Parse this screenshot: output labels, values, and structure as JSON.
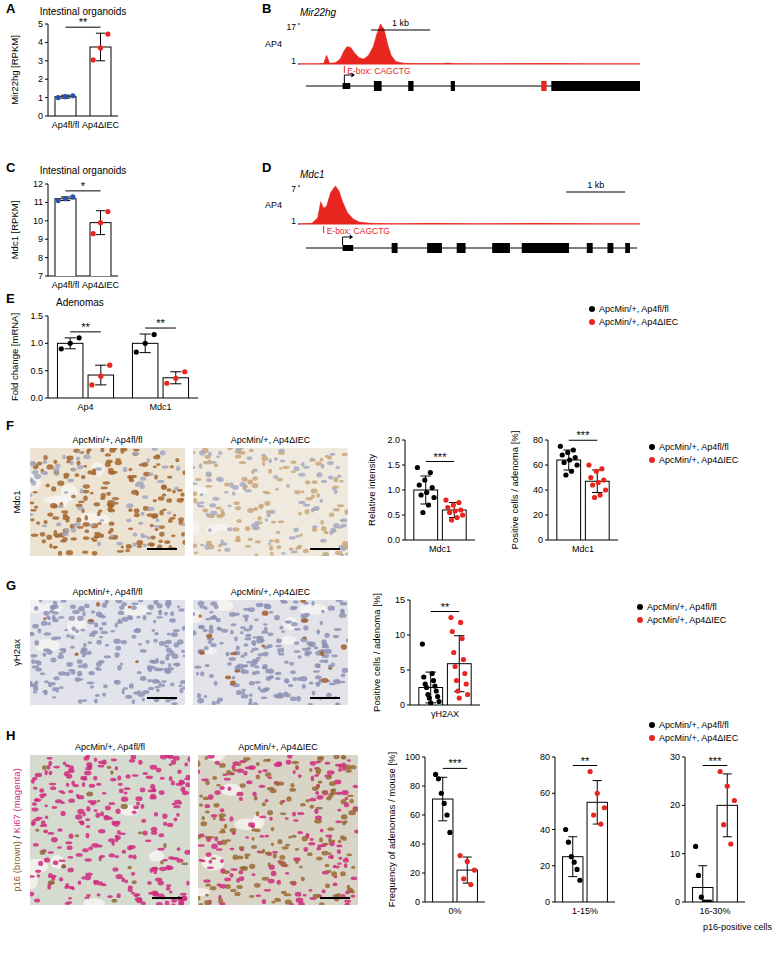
{
  "panel_labels": [
    "A",
    "B",
    "C",
    "D",
    "E",
    "F",
    "G",
    "H"
  ],
  "chart_data": [
    {
      "type": "bar",
      "title": "Intestinal organoids",
      "y_label": "Mir22hg [RPKM]",
      "categories": [
        "Ap4fl/fl",
        "Ap4ΔIEC"
      ],
      "values": [
        1.05,
        3.75
      ],
      "errors": [
        0.08,
        0.75
      ],
      "points": [
        [
          1.0,
          1.05,
          1.1
        ],
        [
          3.05,
          3.7,
          4.45
        ]
      ],
      "colors": [
        "#2a52a5",
        "#e8251f"
      ],
      "ylim": [
        0,
        5
      ],
      "yticks": [
        0,
        1,
        2,
        3,
        4,
        5
      ],
      "significance": [
        "**"
      ]
    },
    {
      "type": "area",
      "title": "Mir22hg",
      "series": [
        {
          "name": "AP4",
          "color": "#e8251f",
          "x": [
            0,
            0.3,
            0.4,
            0.45,
            0.5,
            0.6,
            0.68,
            0.75,
            0.8,
            0.86,
            0.92,
            1.0,
            1.08,
            1.16,
            1.24,
            1.3,
            1.36,
            1.42,
            1.48,
            1.54,
            1.62,
            1.75,
            2.0,
            2.4,
            2.5,
            2.6,
            3.0,
            3.6,
            4.2,
            4.8,
            5.75
          ],
          "values": [
            1,
            1,
            1.2,
            4.5,
            1.3,
            1.5,
            3,
            6.5,
            8,
            7.5,
            5.5,
            3.5,
            3,
            4.5,
            8,
            13,
            17,
            15,
            9,
            4.5,
            2,
            1.3,
            1.1,
            1.1,
            1.4,
            1.1,
            1,
            1.1,
            1.2,
            1,
            1
          ]
        }
      ],
      "xlim": [
        0,
        5.75
      ],
      "ylim": [
        1,
        17
      ],
      "yticks": [
        1,
        17
      ],
      "scale_bar": {
        "value": 1,
        "label": "1 kb"
      },
      "gene_model": {
        "span": [
          0.1,
          5.75
        ],
        "tss": 0.75,
        "exons": [
          {
            "start": 0.72,
            "end": 0.85,
            "kind": "utr"
          },
          {
            "start": 1.25,
            "end": 1.38,
            "kind": "cds"
          },
          {
            "start": 1.83,
            "end": 1.92,
            "kind": "cds"
          },
          {
            "start": 2.55,
            "end": 2.62,
            "kind": "cds"
          },
          {
            "start": 4.08,
            "end": 4.17,
            "kind": "mirna"
          },
          {
            "start": 4.25,
            "end": 5.75,
            "kind": "cds"
          }
        ]
      },
      "annotations": [
        {
          "x": 0.75,
          "text": "E-box: CAGCTG"
        }
      ]
    },
    {
      "type": "bar",
      "title": "Intestinal organoids",
      "y_label": "Mdc1 [RPKM]",
      "categories": [
        "Ap4fl/fl",
        "Ap4ΔIEC"
      ],
      "values": [
        11.2,
        9.9
      ],
      "errors": [
        0.1,
        0.65
      ],
      "points": [
        [
          11.1,
          11.2,
          11.3
        ],
        [
          9.3,
          9.9,
          10.5
        ]
      ],
      "colors": [
        "#2a52a5",
        "#e8251f"
      ],
      "ylim": [
        7,
        12
      ],
      "yticks": [
        7,
        8,
        9,
        10,
        11,
        12
      ],
      "significance": [
        "*"
      ]
    },
    {
      "type": "area",
      "title": "Mdc1",
      "series": [
        {
          "name": "AP4",
          "color": "#e8251f",
          "x": [
            0,
            0.2,
            0.3,
            0.35,
            0.4,
            0.45,
            0.52,
            0.6,
            0.66,
            0.72,
            0.8,
            0.9,
            1.0,
            1.2,
            1.6,
            2.2,
            3,
            4,
            5,
            5.75
          ],
          "values": [
            1,
            1.1,
            2,
            4.5,
            3.5,
            3.8,
            6,
            7,
            6.2,
            4.5,
            2.8,
            1.8,
            1.3,
            1.1,
            1,
            1.1,
            1,
            1.1,
            1,
            1
          ]
        }
      ],
      "xlim": [
        0,
        5.75
      ],
      "ylim": [
        1,
        7
      ],
      "yticks": [
        1,
        7
      ],
      "scale_bar": {
        "value": 1,
        "label": "1 kb"
      },
      "gene_model": {
        "span": [
          0.1,
          5.7
        ],
        "tss": 0.72,
        "exons": [
          {
            "start": 0.72,
            "end": 0.9,
            "kind": "utr"
          },
          {
            "start": 1.55,
            "end": 1.65,
            "kind": "cds"
          },
          {
            "start": 2.15,
            "end": 2.4,
            "kind": "cds"
          },
          {
            "start": 2.65,
            "end": 2.8,
            "kind": "cds"
          },
          {
            "start": 3.25,
            "end": 3.55,
            "kind": "cds"
          },
          {
            "start": 3.75,
            "end": 4.55,
            "kind": "cds"
          },
          {
            "start": 4.85,
            "end": 4.95,
            "kind": "cds"
          },
          {
            "start": 5.2,
            "end": 5.3,
            "kind": "cds"
          },
          {
            "start": 5.5,
            "end": 5.58,
            "kind": "cds"
          }
        ]
      },
      "annotations": [
        {
          "x": 0.4,
          "text": "E-box: CAGCTG"
        }
      ]
    },
    {
      "type": "bar",
      "title": "Adenomas",
      "y_label": "Fold change [mRNA]",
      "categories": [
        "Ap4",
        "Mdc1"
      ],
      "series": [
        {
          "name": "ApcMin/+, Ap4fl/fl",
          "color": "#000000",
          "values": [
            1.0,
            1.0
          ],
          "errors": [
            0.1,
            0.17
          ],
          "points": [
            [
              0.9,
              1.0,
              1.1
            ],
            [
              0.84,
              1.0,
              1.16
            ]
          ]
        },
        {
          "name": "ApcMin/+, Ap4ΔIEC",
          "color": "#e8251f",
          "values": [
            0.42,
            0.37
          ],
          "errors": [
            0.18,
            0.11
          ],
          "points": [
            [
              0.24,
              0.4,
              0.6
            ],
            [
              0.27,
              0.36,
              0.48
            ]
          ]
        }
      ],
      "ylim": [
        0,
        1.5
      ],
      "yticks": [
        {
          "value": 0,
          "label": "0.0"
        },
        0.5,
        {
          "value": 1,
          "label": "1.0"
        },
        1.5
      ],
      "legend": "right",
      "significance": [
        "**",
        "**"
      ]
    },
    {
      "type": "bar",
      "y_label": "Relative intensity",
      "categories": [
        "Mdc1"
      ],
      "series": [
        {
          "name": "ApcMin/+, Ap4fl/fl",
          "color": "#000000",
          "values": [
            1.0
          ],
          "errors": [
            0.28
          ],
          "points": [
            [
              1.45,
              1.35,
              1.2,
              1.1,
              1.05,
              0.95,
              0.9,
              0.85,
              0.7,
              0.55
            ]
          ]
        },
        {
          "name": "ApcMin/+, Ap4ΔIEC",
          "color": "#e8251f",
          "values": [
            0.6
          ],
          "errors": [
            0.15
          ],
          "points": [
            [
              0.8,
              0.75,
              0.7,
              0.65,
              0.6,
              0.58,
              0.55,
              0.5,
              0.45,
              0.4
            ]
          ]
        }
      ],
      "ylim": [
        0,
        2
      ],
      "yticks": [
        {
          "value": 0,
          "label": "0.0"
        },
        0.5,
        {
          "value": 1,
          "label": "1.0"
        },
        1.5,
        {
          "value": 2,
          "label": "2.0"
        }
      ],
      "significance": [
        "***"
      ]
    },
    {
      "type": "bar",
      "y_label": "Positive cells / adenoma [%]",
      "categories": [
        "Mdc1"
      ],
      "series": [
        {
          "name": "ApcMin/+, Ap4fl/fl",
          "color": "#000000",
          "values": [
            64
          ],
          "errors": [
            8
          ],
          "points": [
            [
              75,
              72,
              70,
              68,
              66,
              64,
              62,
              60,
              55,
              52
            ]
          ]
        },
        {
          "name": "ApcMin/+, Ap4ΔIEC",
          "color": "#e8251f",
          "values": [
            47
          ],
          "errors": [
            9
          ],
          "points": [
            [
              60,
              57,
              55,
              50,
              48,
              46,
              44,
              40,
              36,
              34
            ]
          ]
        }
      ],
      "ylim": [
        0,
        80
      ],
      "yticks": [
        0,
        20,
        40,
        60,
        80
      ],
      "legend": "right",
      "significance": [
        "***"
      ]
    },
    {
      "type": "bar",
      "y_label": "Positive cells / adenoma [%]",
      "categories": [
        "γH2AX"
      ],
      "series": [
        {
          "name": "ApcMin/+, Ap4fl/fl",
          "color": "#000000",
          "values": [
            2.5
          ],
          "errors": [
            2.2
          ],
          "points": [
            [
              8.7,
              4.5,
              4.0,
              3.5,
              3.0,
              2.7,
              2.5,
              2.0,
              1.5,
              1.2,
              1.0,
              0.5,
              0.3
            ]
          ]
        },
        {
          "name": "ApcMin/+, Ap4ΔIEC",
          "color": "#e8251f",
          "values": [
            5.9
          ],
          "errors": [
            4.0
          ],
          "points": [
            [
              12.5,
              11.8,
              10.5,
              9.5,
              7.5,
              6.5,
              5.5,
              4.5,
              3.5,
              3.0,
              2.0,
              1.5,
              1.0
            ]
          ]
        }
      ],
      "ylim": [
        0,
        15
      ],
      "yticks": [
        0,
        5,
        10,
        15
      ],
      "legend": "right",
      "significance": [
        "**"
      ]
    },
    {
      "type": "bar",
      "y_label": "Frequency of adenomas / mouse [%]",
      "categories": [
        "0%"
      ],
      "series": [
        {
          "name": "ApcMin/+, Ap4fl/fl",
          "color": "#000000",
          "values": [
            71
          ],
          "errors": [
            15
          ],
          "points": [
            [
              88,
              85,
              75,
              68,
              60,
              48
            ]
          ]
        },
        {
          "name": "ApcMin/+, Ap4ΔIEC",
          "color": "#e8251f",
          "values": [
            22
          ],
          "errors": [
            9
          ],
          "points": [
            [
              32,
              28,
              22,
              16,
              12
            ]
          ]
        }
      ],
      "ylim": [
        0,
        100
      ],
      "yticks": [
        0,
        20,
        40,
        60,
        80,
        100
      ],
      "significance": [
        "***"
      ]
    },
    {
      "type": "bar",
      "categories": [
        "1-15%"
      ],
      "series": [
        {
          "name": "ApcMin/+, Ap4fl/fl",
          "color": "#000000",
          "values": [
            25
          ],
          "errors": [
            11
          ],
          "points": [
            [
              40,
              33,
              25,
              22,
              18,
              12
            ]
          ]
        },
        {
          "name": "ApcMin/+, Ap4ΔIEC",
          "color": "#e8251f",
          "values": [
            55
          ],
          "errors": [
            12
          ],
          "points": [
            [
              72,
              60,
              52,
              48,
              43
            ]
          ]
        }
      ],
      "ylim": [
        0,
        80
      ],
      "yticks": [
        0,
        20,
        40,
        60,
        80
      ],
      "significance": [
        "**"
      ]
    },
    {
      "type": "bar",
      "categories": [
        "16-30%"
      ],
      "x_label": "p16-positive cells",
      "series": [
        {
          "name": "ApcMin/+, Ap4fl/fl",
          "color": "#000000",
          "values": [
            3
          ],
          "errors": [
            4.5
          ],
          "points": [
            [
              11.5,
              5.5,
              1,
              0,
              0,
              0
            ]
          ]
        },
        {
          "name": "ApcMin/+, Ap4ΔIEC",
          "color": "#e8251f",
          "values": [
            20
          ],
          "errors": [
            6.5
          ],
          "points": [
            [
              27,
              24,
              21,
              16,
              12
            ]
          ]
        }
      ],
      "ylim": [
        0,
        30
      ],
      "yticks": [
        0,
        10,
        20,
        30
      ],
      "legend": "right",
      "significance": [
        "***"
      ]
    }
  ],
  "images": [
    {
      "row_label": [
        "Mdc1"
      ],
      "columns": [
        "ApcMin/+, Ap4fl/fl",
        "ApcMin/+, Ap4ΔIEC"
      ]
    },
    {
      "row_label": [
        "γH2ax"
      ],
      "columns": [
        "ApcMin/+, Ap4fl/fl",
        "ApcMin/+, Ap4ΔIEC"
      ]
    },
    {
      "row_label": [
        "p16 (brown)",
        "/",
        "Ki67 (magenta)"
      ],
      "columns": [
        "ApcMin/+, Ap4fl/fl",
        "ApcMin/+, Ap4ΔIEC"
      ]
    }
  ]
}
